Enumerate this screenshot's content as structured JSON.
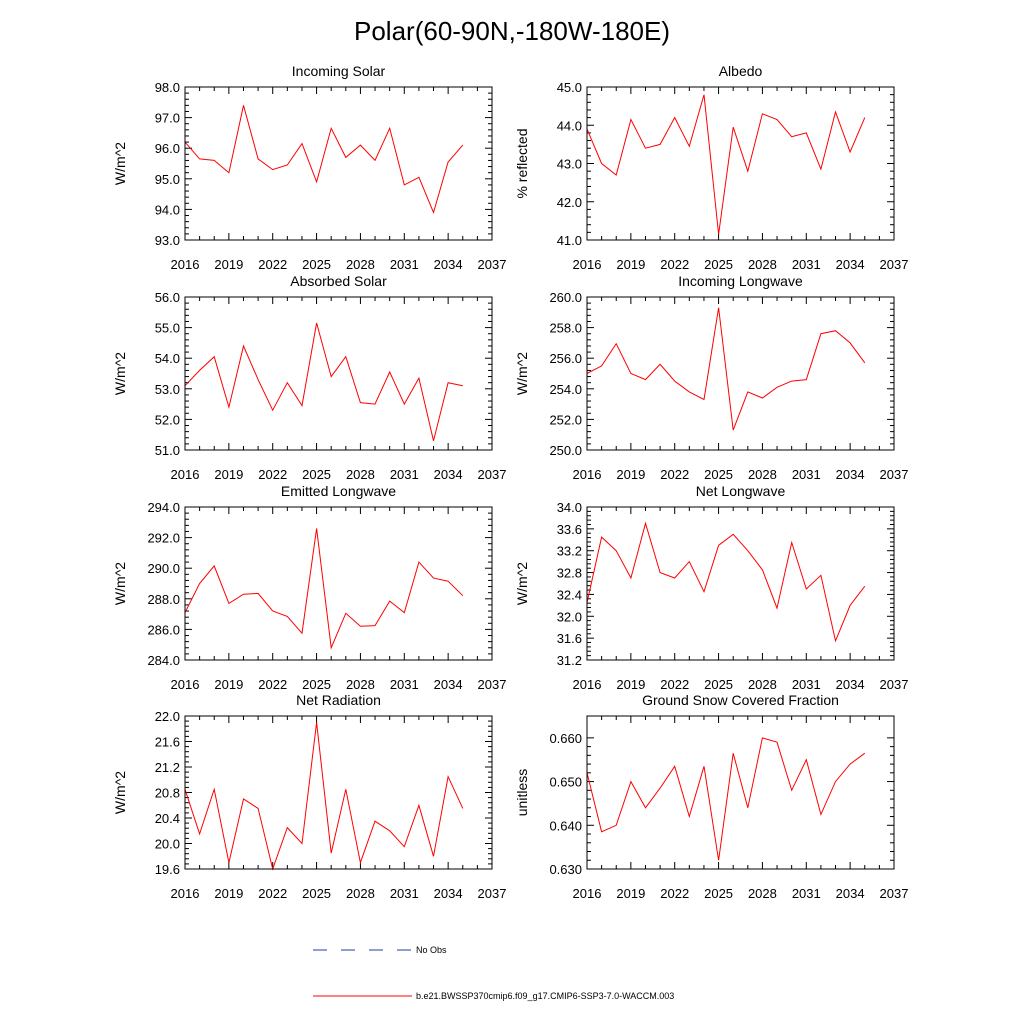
{
  "title": "Polar(60-90N,-180W-180E)",
  "legend": [
    {
      "label": "No Obs",
      "color": "#1e3ca0",
      "style": "dashed"
    },
    {
      "label": "b.e21.BWSSP370cmip6.f09_g17.CMIP6-SSP3-7.0-WACCM.003",
      "color": "#ff0000",
      "style": "solid"
    }
  ],
  "chart_data": [
    {
      "type": "line",
      "title": "Incoming Solar",
      "xlabel": "",
      "ylabel": "W/m^2",
      "xlim": [
        2016,
        2037
      ],
      "ylim": [
        93.0,
        98.0
      ],
      "xticks": [
        2016,
        2019,
        2022,
        2025,
        2028,
        2031,
        2034,
        2037
      ],
      "yticks": [
        93.0,
        94.0,
        95.0,
        96.0,
        97.0,
        98.0
      ],
      "ydec": 1,
      "x": [
        2016,
        2017,
        2018,
        2019,
        2020,
        2021,
        2022,
        2023,
        2024,
        2025,
        2026,
        2027,
        2028,
        2029,
        2030,
        2031,
        2032,
        2033,
        2034,
        2035
      ],
      "series": [
        {
          "name": "b.e21.BWSSP370cmip6.f09_g17.CMIP6-SSP3-7.0-WACCM.003",
          "values": [
            96.2,
            95.65,
            95.6,
            95.2,
            97.4,
            95.65,
            95.3,
            95.45,
            96.15,
            94.9,
            96.65,
            95.7,
            96.1,
            95.6,
            96.65,
            94.8,
            95.05,
            93.9,
            95.55,
            96.1
          ]
        }
      ]
    },
    {
      "type": "line",
      "title": "Albedo",
      "xlabel": "",
      "ylabel": "% reflected",
      "xlim": [
        2016,
        2037
      ],
      "ylim": [
        41.0,
        45.0
      ],
      "xticks": [
        2016,
        2019,
        2022,
        2025,
        2028,
        2031,
        2034,
        2037
      ],
      "yticks": [
        41.0,
        42.0,
        43.0,
        44.0,
        45.0
      ],
      "ydec": 1,
      "x": [
        2016,
        2017,
        2018,
        2019,
        2020,
        2021,
        2022,
        2023,
        2024,
        2025,
        2026,
        2027,
        2028,
        2029,
        2030,
        2031,
        2032,
        2033,
        2034,
        2035
      ],
      "series": [
        {
          "name": "b.e21.BWSSP370cmip6.f09_g17.CMIP6-SSP3-7.0-WACCM.003",
          "values": [
            43.9,
            43.0,
            42.7,
            44.15,
            43.4,
            43.5,
            44.2,
            43.45,
            44.8,
            41.15,
            43.95,
            42.8,
            44.3,
            44.15,
            43.7,
            43.8,
            42.85,
            44.35,
            43.3,
            44.2
          ]
        }
      ]
    },
    {
      "type": "line",
      "title": "Absorbed Solar",
      "xlabel": "",
      "ylabel": "W/m^2",
      "xlim": [
        2016,
        2037
      ],
      "ylim": [
        51.0,
        56.0
      ],
      "xticks": [
        2016,
        2019,
        2022,
        2025,
        2028,
        2031,
        2034,
        2037
      ],
      "yticks": [
        51.0,
        52.0,
        53.0,
        54.0,
        55.0,
        56.0
      ],
      "ydec": 1,
      "x": [
        2016,
        2017,
        2018,
        2019,
        2020,
        2021,
        2022,
        2023,
        2024,
        2025,
        2026,
        2027,
        2028,
        2029,
        2030,
        2031,
        2032,
        2033,
        2034,
        2035
      ],
      "series": [
        {
          "name": "b.e21.BWSSP370cmip6.f09_g17.CMIP6-SSP3-7.0-WACCM.003",
          "values": [
            53.1,
            53.6,
            54.05,
            52.4,
            54.4,
            53.3,
            52.3,
            53.2,
            52.45,
            55.15,
            53.4,
            54.05,
            52.55,
            52.5,
            53.55,
            52.5,
            53.35,
            51.3,
            53.2,
            53.1
          ]
        }
      ]
    },
    {
      "type": "line",
      "title": "Incoming Longwave",
      "xlabel": "",
      "ylabel": "W/m^2",
      "xlim": [
        2016,
        2037
      ],
      "ylim": [
        250.0,
        260.0
      ],
      "xticks": [
        2016,
        2019,
        2022,
        2025,
        2028,
        2031,
        2034,
        2037
      ],
      "yticks": [
        250.0,
        252.0,
        254.0,
        256.0,
        258.0,
        260.0
      ],
      "ydec": 1,
      "x": [
        2016,
        2017,
        2018,
        2019,
        2020,
        2021,
        2022,
        2023,
        2024,
        2025,
        2026,
        2027,
        2028,
        2029,
        2030,
        2031,
        2032,
        2033,
        2034,
        2035
      ],
      "series": [
        {
          "name": "b.e21.BWSSP370cmip6.f09_g17.CMIP6-SSP3-7.0-WACCM.003",
          "values": [
            255.0,
            255.5,
            256.95,
            255.0,
            254.6,
            255.6,
            254.5,
            253.8,
            253.3,
            259.3,
            251.3,
            253.8,
            253.4,
            254.1,
            254.5,
            254.6,
            257.6,
            257.8,
            257.0,
            255.7
          ]
        }
      ]
    },
    {
      "type": "line",
      "title": "Emitted Longwave",
      "xlabel": "",
      "ylabel": "W/m^2",
      "xlim": [
        2016,
        2037
      ],
      "ylim": [
        284.0,
        294.0
      ],
      "xticks": [
        2016,
        2019,
        2022,
        2025,
        2028,
        2031,
        2034,
        2037
      ],
      "yticks": [
        284.0,
        286.0,
        288.0,
        290.0,
        292.0,
        294.0
      ],
      "ydec": 1,
      "x": [
        2016,
        2017,
        2018,
        2019,
        2020,
        2021,
        2022,
        2023,
        2024,
        2025,
        2026,
        2027,
        2028,
        2029,
        2030,
        2031,
        2032,
        2033,
        2034,
        2035
      ],
      "series": [
        {
          "name": "b.e21.BWSSP370cmip6.f09_g17.CMIP6-SSP3-7.0-WACCM.003",
          "values": [
            287.1,
            289.0,
            290.15,
            287.7,
            288.3,
            288.35,
            287.2,
            286.85,
            285.75,
            292.6,
            284.8,
            287.05,
            286.2,
            286.25,
            287.85,
            287.1,
            290.4,
            289.35,
            289.15,
            288.2
          ]
        }
      ]
    },
    {
      "type": "line",
      "title": "Net Longwave",
      "xlabel": "",
      "ylabel": "W/m^2",
      "xlim": [
        2016,
        2037
      ],
      "ylim": [
        31.2,
        34.0
      ],
      "xticks": [
        2016,
        2019,
        2022,
        2025,
        2028,
        2031,
        2034,
        2037
      ],
      "yticks": [
        31.2,
        31.6,
        32.0,
        32.4,
        32.8,
        33.2,
        33.6,
        34.0
      ],
      "ydec": 1,
      "x": [
        2016,
        2017,
        2018,
        2019,
        2020,
        2021,
        2022,
        2023,
        2024,
        2025,
        2026,
        2027,
        2028,
        2029,
        2030,
        2031,
        2032,
        2033,
        2034,
        2035
      ],
      "series": [
        {
          "name": "b.e21.BWSSP370cmip6.f09_g17.CMIP6-SSP3-7.0-WACCM.003",
          "values": [
            32.25,
            33.45,
            33.2,
            32.7,
            33.7,
            32.8,
            32.7,
            33.0,
            32.45,
            33.3,
            33.5,
            33.2,
            32.85,
            32.15,
            33.35,
            32.5,
            32.75,
            31.55,
            32.2,
            32.55
          ]
        }
      ]
    },
    {
      "type": "line",
      "title": "Net Radiation",
      "xlabel": "",
      "ylabel": "W/m^2",
      "xlim": [
        2016,
        2037
      ],
      "ylim": [
        19.6,
        22.0
      ],
      "xticks": [
        2016,
        2019,
        2022,
        2025,
        2028,
        2031,
        2034,
        2037
      ],
      "yticks": [
        19.6,
        20.0,
        20.4,
        20.8,
        21.2,
        21.6,
        22.0
      ],
      "ydec": 1,
      "x": [
        2016,
        2017,
        2018,
        2019,
        2020,
        2021,
        2022,
        2023,
        2024,
        2025,
        2026,
        2027,
        2028,
        2029,
        2030,
        2031,
        2032,
        2033,
        2034,
        2035
      ],
      "series": [
        {
          "name": "b.e21.BWSSP370cmip6.f09_g17.CMIP6-SSP3-7.0-WACCM.003",
          "values": [
            20.85,
            20.15,
            20.85,
            19.7,
            20.7,
            20.55,
            19.6,
            20.25,
            20.0,
            21.9,
            19.85,
            20.85,
            19.7,
            20.35,
            20.2,
            19.95,
            20.6,
            19.8,
            21.05,
            20.55
          ]
        }
      ]
    },
    {
      "type": "line",
      "title": "Ground Snow Covered Fraction",
      "xlabel": "",
      "ylabel": "unitless",
      "xlim": [
        2016,
        2037
      ],
      "ylim": [
        0.63,
        0.665
      ],
      "xticks": [
        2016,
        2019,
        2022,
        2025,
        2028,
        2031,
        2034,
        2037
      ],
      "yticks": [
        0.63,
        0.64,
        0.65,
        0.66
      ],
      "ydec": 3,
      "x": [
        2016,
        2017,
        2018,
        2019,
        2020,
        2021,
        2022,
        2023,
        2024,
        2025,
        2026,
        2027,
        2028,
        2029,
        2030,
        2031,
        2032,
        2033,
        2034,
        2035
      ],
      "series": [
        {
          "name": "b.e21.BWSSP370cmip6.f09_g17.CMIP6-SSP3-7.0-WACCM.003",
          "values": [
            0.652,
            0.6385,
            0.64,
            0.65,
            0.644,
            0.6485,
            0.6535,
            0.642,
            0.6535,
            0.632,
            0.6565,
            0.644,
            0.66,
            0.659,
            0.648,
            0.655,
            0.6425,
            0.65,
            0.654,
            0.6565
          ]
        }
      ]
    }
  ]
}
